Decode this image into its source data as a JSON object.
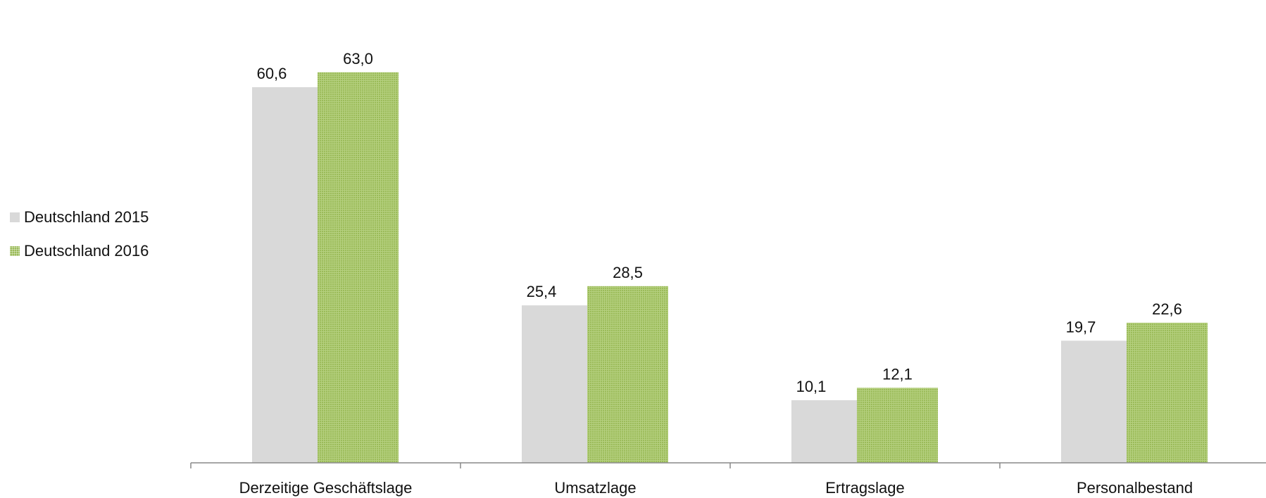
{
  "chart_data": {
    "type": "bar",
    "categories": [
      "Derzeitige Geschäftslage",
      "Umsatzlage",
      "Ertragslage",
      "Personalbestand"
    ],
    "series": [
      {
        "name": "Deutschland 2015",
        "values": [
          60.6,
          25.4,
          10.1,
          19.7
        ],
        "labels": [
          "60,6",
          "25,4",
          "10,1",
          "19,7"
        ],
        "color": "#d9d9d9"
      },
      {
        "name": "Deutschland 2016",
        "values": [
          63.0,
          28.5,
          12.1,
          22.6
        ],
        "labels": [
          "63,0",
          "28,5",
          "12,1",
          "22,6"
        ],
        "color": "#9bbb59"
      }
    ],
    "ylim": [
      0,
      68
    ],
    "grid": false,
    "legend": "left"
  }
}
